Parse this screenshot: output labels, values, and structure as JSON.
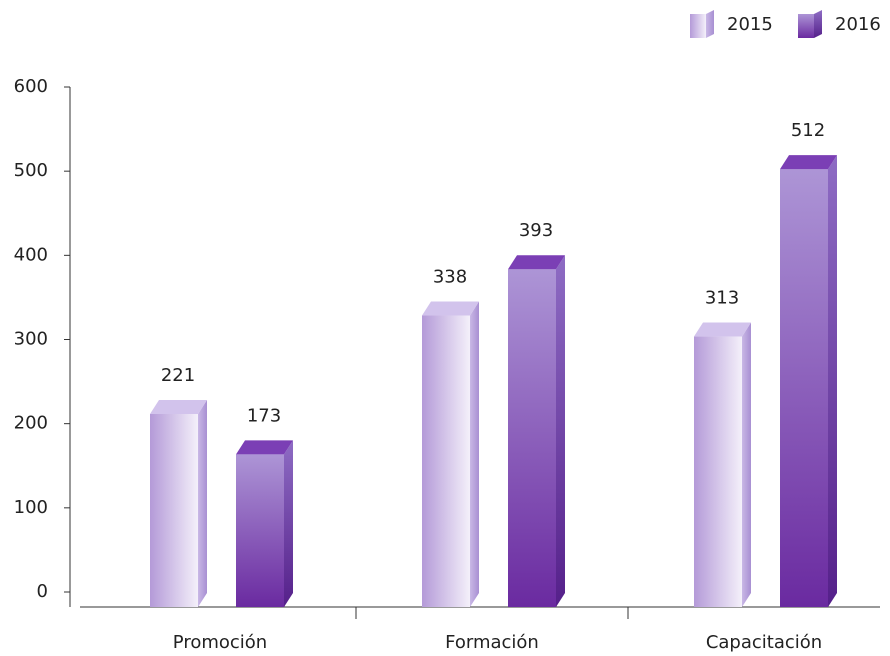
{
  "chart_data": {
    "type": "bar3d",
    "categories": [
      "Promoción",
      "Formación",
      "Capacitación"
    ],
    "series": [
      {
        "name": "2015",
        "color": "#b49ad8",
        "values": [
          221,
          338,
          313
        ]
      },
      {
        "name": "2016",
        "color": "#6a2aa0",
        "values": [
          173,
          393,
          512
        ]
      }
    ],
    "ylim": [
      0,
      600
    ],
    "yticks": [
      0,
      100,
      200,
      300,
      400,
      500,
      600
    ],
    "legend": "top-right"
  }
}
